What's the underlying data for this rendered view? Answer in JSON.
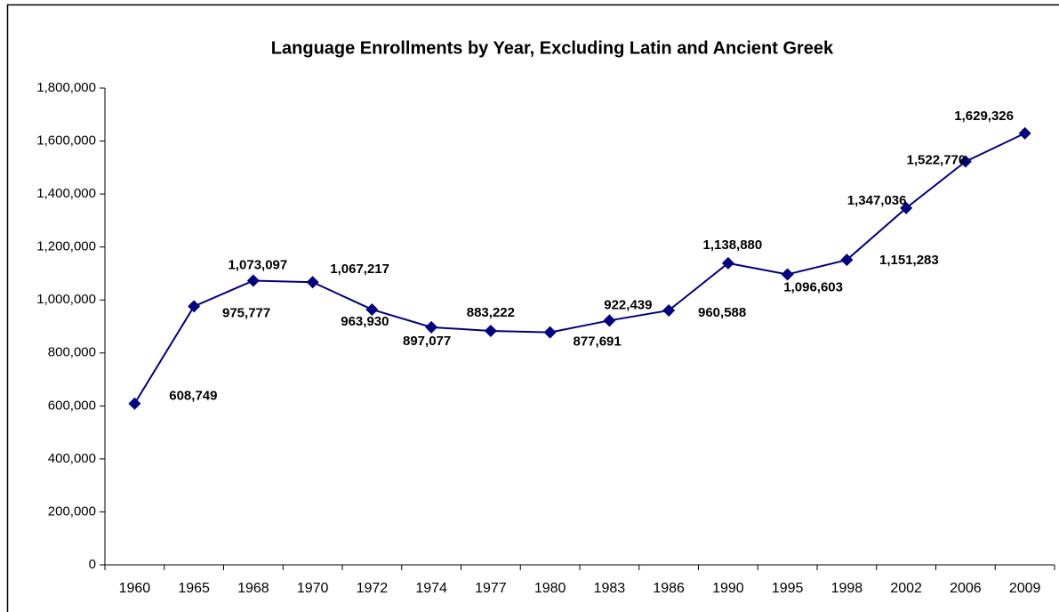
{
  "chart_data": {
    "type": "line",
    "title": "Language Enrollments by Year, Excluding Latin and  Ancient Greek",
    "categories": [
      "1960",
      "1965",
      "1968",
      "1970",
      "1972",
      "1974",
      "1977",
      "1980",
      "1983",
      "1986",
      "1990",
      "1995",
      "1998",
      "2002",
      "2006",
      "2009"
    ],
    "values": [
      608749,
      975777,
      1073097,
      1067217,
      963930,
      897077,
      883222,
      877691,
      922439,
      960588,
      1138880,
      1096603,
      1151283,
      1347036,
      1522770,
      1629326
    ],
    "value_labels": [
      "608,749",
      "975,777",
      "1,073,097",
      "1,067,217",
      "963,930",
      "897,077",
      "883,222",
      "877,691",
      "922,439",
      "960,588",
      "1,138,880",
      "1,096,603",
      "1,151,283",
      "1,347,036",
      "1,522,770",
      "1,629,326"
    ],
    "color": "#000080",
    "ylim": [
      0,
      1800000
    ],
    "yticks": [
      {
        "value": 0,
        "label": "0"
      },
      {
        "value": 200000,
        "label": "200,000"
      },
      {
        "value": 400000,
        "label": "400,000"
      },
      {
        "value": 600000,
        "label": "600,000"
      },
      {
        "value": 800000,
        "label": "800,000"
      },
      {
        "value": 1000000,
        "label": "1,000,000"
      },
      {
        "value": 1200000,
        "label": "1,200,000"
      },
      {
        "value": 1400000,
        "label": "1,400,000"
      },
      {
        "value": 1600000,
        "label": "1,600,000"
      },
      {
        "value": 1800000,
        "label": "1,800,000"
      }
    ],
    "grid": false
  }
}
